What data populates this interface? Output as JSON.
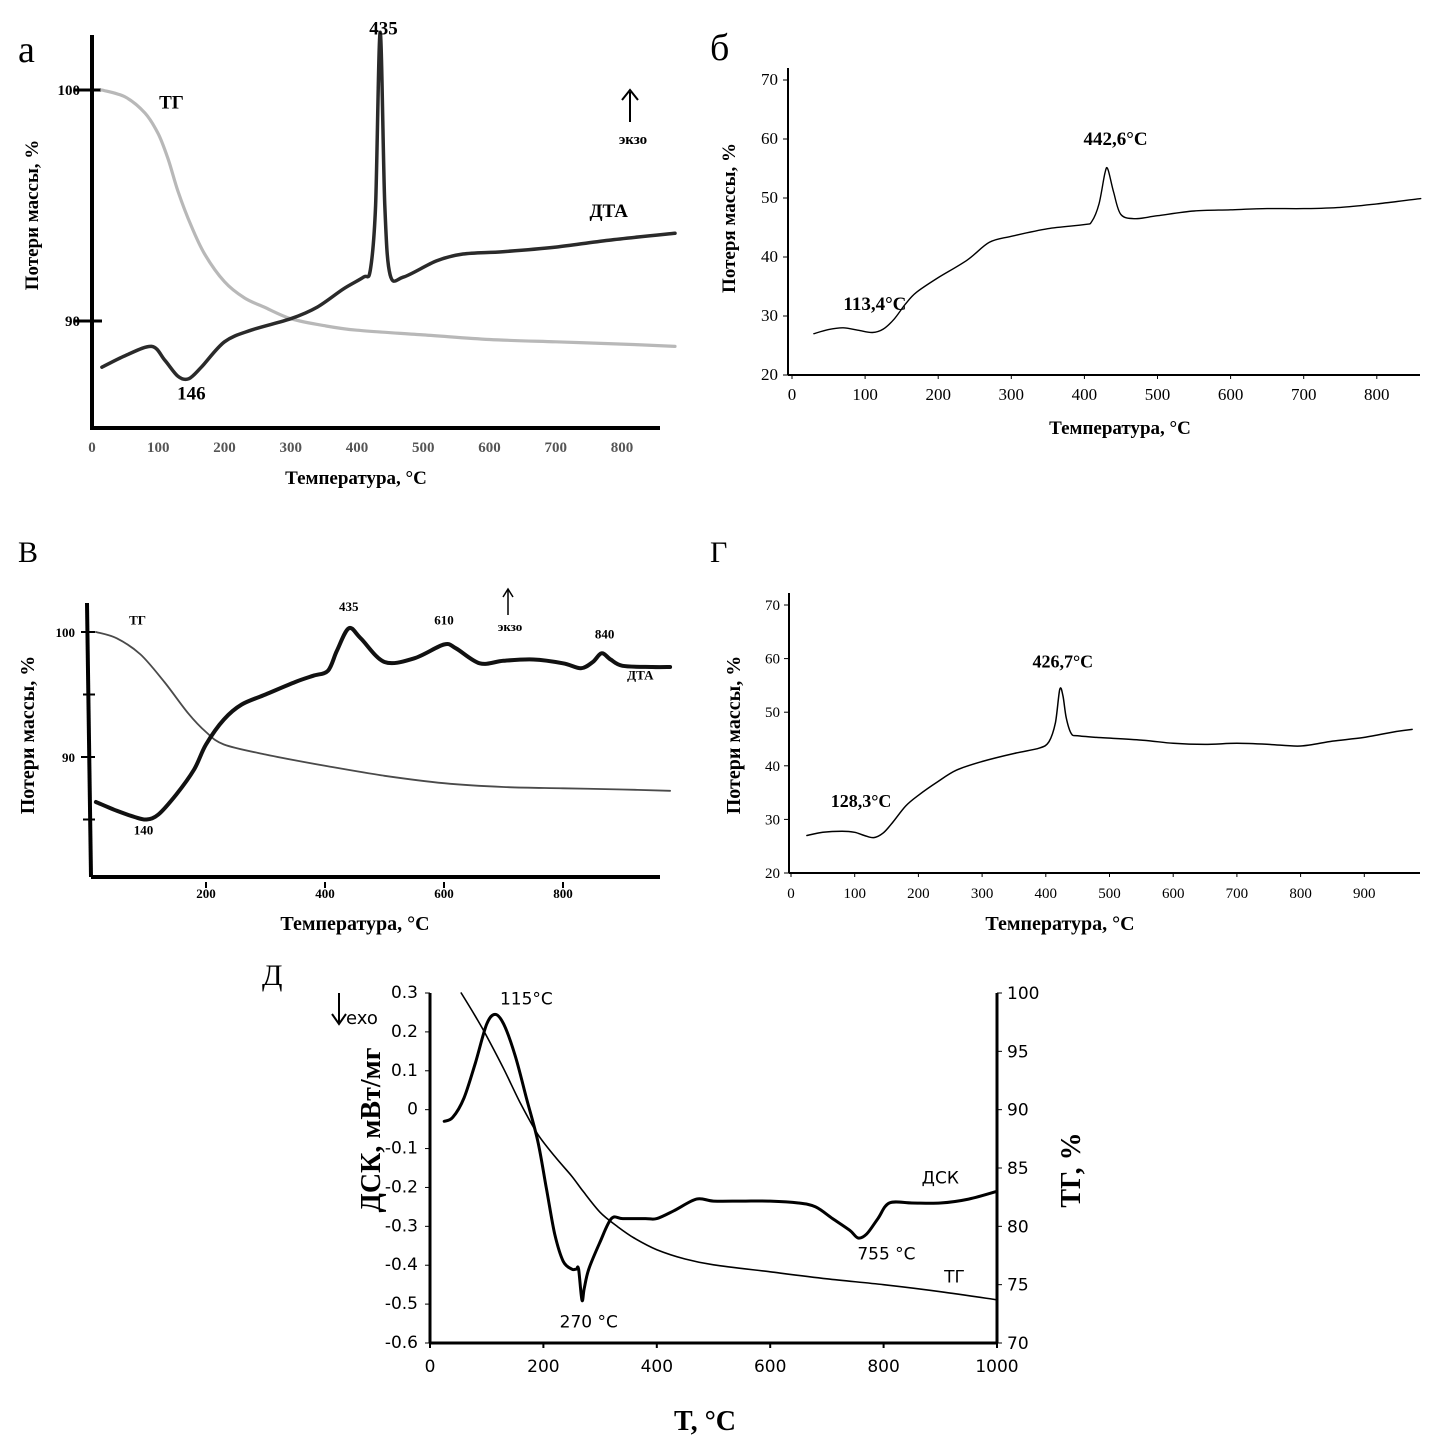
{
  "chart_data": [
    {
      "id": "a",
      "panel_label": "а",
      "type": "line",
      "title": "",
      "xlabel": "Температура, °С",
      "ylabel": "Потери массы, %",
      "xlim": [
        0,
        880
      ],
      "x_ticks": [
        "0",
        "100",
        "200",
        "300",
        "400",
        "500",
        "600",
        "700",
        "800"
      ],
      "x_tick_values": [
        0,
        100,
        200,
        300,
        400,
        500,
        600,
        700,
        800
      ],
      "y_ticks": [
        "100",
        "90"
      ],
      "y_tick_values": [
        100,
        90
      ],
      "ylim": [
        85.3,
        103
      ],
      "grid": false,
      "exo_label": "экзо",
      "series": [
        {
          "name": "ТГ",
          "color": "#b8b8b8",
          "axis": "left",
          "x": [
            15,
            50,
            80,
            100,
            115,
            130,
            150,
            170,
            200,
            230,
            260,
            300,
            350,
            400,
            500,
            600,
            700,
            800,
            880
          ],
          "y": [
            100,
            99.7,
            99,
            98.1,
            97,
            95.6,
            94.1,
            92.9,
            91.7,
            91,
            90.6,
            90.1,
            89.8,
            89.6,
            89.4,
            89.2,
            89.1,
            89.0,
            88.9
          ]
        },
        {
          "name": "ДТА",
          "color": "#2a2a2a",
          "axis": "left",
          "x": [
            15,
            50,
            90,
            110,
            130,
            146,
            165,
            200,
            240,
            300,
            340,
            380,
            410,
            420,
            428,
            435,
            442,
            450,
            470,
            520,
            560,
            620,
            700,
            780,
            880
          ],
          "y": [
            88.0,
            88.5,
            88.9,
            88.3,
            87.6,
            87.5,
            88.0,
            89.1,
            89.6,
            90.1,
            90.6,
            91.4,
            91.9,
            92.2,
            95.0,
            102.5,
            95.0,
            92.0,
            91.9,
            92.6,
            92.9,
            93.0,
            93.2,
            93.5,
            93.8
          ]
        }
      ],
      "annotations": [
        {
          "text": "ТГ",
          "x": 120,
          "y": 99.2
        },
        {
          "text": "ДТА",
          "x": 780,
          "y": 94.5
        },
        {
          "text": "435",
          "x": 440,
          "y": 102.4
        },
        {
          "text": "146",
          "x": 150,
          "y": 86.6
        }
      ]
    },
    {
      "id": "b",
      "panel_label": "б",
      "type": "line",
      "title": "",
      "xlabel": "Температура, °С",
      "ylabel": "Потеря массы, %",
      "xlim": [
        0,
        860
      ],
      "ylim": [
        20,
        72
      ],
      "x_ticks": [
        "0",
        "100",
        "200",
        "300",
        "400",
        "500",
        "600",
        "700",
        "800"
      ],
      "x_tick_values": [
        0,
        100,
        200,
        300,
        400,
        500,
        600,
        700,
        800
      ],
      "y_ticks": [
        "20",
        "30",
        "40",
        "50",
        "60",
        "70"
      ],
      "y_tick_values": [
        20,
        30,
        40,
        50,
        60,
        70
      ],
      "grid": false,
      "series": [
        {
          "name": "curve",
          "color": "#000000",
          "x": [
            30,
            50,
            70,
            90,
            110,
            125,
            140,
            155,
            170,
            200,
            240,
            270,
            300,
            350,
            400,
            410,
            420,
            428,
            432,
            440,
            450,
            470,
            500,
            550,
            600,
            650,
            700,
            750,
            800,
            860
          ],
          "y": [
            27.0,
            27.7,
            28.0,
            27.6,
            27.2,
            27.8,
            29.5,
            32.0,
            34.0,
            36.5,
            39.5,
            42.5,
            43.5,
            44.8,
            45.5,
            46.0,
            49.0,
            54.2,
            54.9,
            51.0,
            47.2,
            46.5,
            47.0,
            47.8,
            48.0,
            48.2,
            48.2,
            48.4,
            49.0,
            49.9
          ]
        }
      ],
      "annotations": [
        {
          "text": "113,4°С",
          "x": 113.4,
          "y": 31
        },
        {
          "text": "442,6°С",
          "x": 442.6,
          "y": 59
        }
      ]
    },
    {
      "id": "v",
      "panel_label": "В",
      "type": "line",
      "title": "",
      "xlabel": "Температура, °С",
      "ylabel": "Потери массы, %",
      "xlim": [
        0,
        980
      ],
      "ylim": [
        80,
        102.5
      ],
      "x_ticks": [
        "200",
        "400",
        "600",
        "800"
      ],
      "x_tick_values": [
        200,
        400,
        600,
        800
      ],
      "y_ticks": [
        "100",
        "90"
      ],
      "y_tick_values": [
        100,
        90
      ],
      "grid": false,
      "exo_label": "экзо",
      "series": [
        {
          "name": "ТГ",
          "color": "#4a4a4a",
          "axis": "left",
          "x": [
            15,
            50,
            90,
            130,
            170,
            200,
            230,
            300,
            400,
            500,
            600,
            700,
            800,
            900,
            980
          ],
          "y": [
            100,
            99.5,
            98.2,
            96.0,
            93.5,
            92.0,
            91.0,
            90.2,
            89.3,
            88.5,
            87.9,
            87.6,
            87.5,
            87.4,
            87.3
          ]
        },
        {
          "name": "ДТА",
          "color": "#111111",
          "axis": "left",
          "x": [
            15,
            50,
            80,
            100,
            120,
            150,
            180,
            200,
            230,
            260,
            300,
            350,
            380,
            405,
            420,
            440,
            460,
            500,
            550,
            600,
            620,
            660,
            700,
            750,
            800,
            830,
            850,
            865,
            880,
            900,
            950,
            980
          ],
          "y": [
            86.4,
            85.7,
            85.2,
            85.0,
            85.4,
            87.0,
            89.0,
            91.0,
            93.0,
            94.2,
            95.0,
            96.0,
            96.5,
            96.9,
            98.5,
            100.3,
            99.5,
            97.6,
            97.9,
            99.0,
            98.7,
            97.5,
            97.7,
            97.8,
            97.5,
            97.1,
            97.6,
            98.3,
            97.8,
            97.3,
            97.2,
            97.2
          ]
        }
      ],
      "annotations": [
        {
          "text": "ТГ",
          "x": 85,
          "y": 100.6
        },
        {
          "text": "ДТА",
          "x": 930,
          "y": 96.2
        },
        {
          "text": "435",
          "x": 440,
          "y": 101.7
        },
        {
          "text": "610",
          "x": 600,
          "y": 100.6
        },
        {
          "text": "840",
          "x": 870,
          "y": 99.5
        },
        {
          "text": "140",
          "x": 95,
          "y": 83.8
        }
      ]
    },
    {
      "id": "g",
      "panel_label": "Г",
      "type": "line",
      "title": "",
      "xlabel": "Температура, °С",
      "ylabel": "Потери массы, %",
      "xlim": [
        0,
        975
      ],
      "ylim": [
        20,
        72
      ],
      "x_ticks": [
        "0",
        "100",
        "200",
        "300",
        "400",
        "500",
        "600",
        "700",
        "800",
        "900"
      ],
      "x_tick_values": [
        0,
        100,
        200,
        300,
        400,
        500,
        600,
        700,
        800,
        900
      ],
      "y_ticks": [
        "20",
        "30",
        "40",
        "50",
        "60",
        "70"
      ],
      "y_tick_values": [
        20,
        30,
        40,
        50,
        60,
        70
      ],
      "grid": false,
      "series": [
        {
          "name": "curve",
          "color": "#000000",
          "x": [
            25,
            50,
            80,
            100,
            115,
            130,
            145,
            160,
            180,
            200,
            230,
            260,
            300,
            350,
            390,
            405,
            415,
            422,
            427,
            432,
            440,
            450,
            480,
            550,
            600,
            650,
            700,
            750,
            800,
            850,
            900,
            950,
            975
          ],
          "y": [
            27.0,
            27.6,
            27.8,
            27.6,
            27.0,
            26.6,
            27.5,
            29.5,
            32.5,
            34.5,
            37.0,
            39.2,
            40.8,
            42.3,
            43.3,
            44.5,
            48.0,
            54.3,
            53.0,
            49.0,
            46.0,
            45.6,
            45.3,
            44.8,
            44.2,
            44.0,
            44.2,
            44.0,
            43.7,
            44.6,
            45.3,
            46.4,
            46.8
          ]
        }
      ],
      "annotations": [
        {
          "text": "128,3°С",
          "x": 110,
          "y": 32.3
        },
        {
          "text": "426,7°С",
          "x": 426.7,
          "y": 58.3
        }
      ]
    },
    {
      "id": "d",
      "panel_label": "Д",
      "type": "line",
      "title": "",
      "xlabel": "T, °C",
      "ylabel": "ДСК, мВт/мг",
      "y2label": "ТГ, %",
      "xlim": [
        0,
        1000
      ],
      "ylim": [
        -0.6,
        0.3
      ],
      "y2lim": [
        70,
        100
      ],
      "x_ticks": [
        "0",
        "200",
        "400",
        "600",
        "800",
        "1000"
      ],
      "x_tick_values": [
        0,
        200,
        400,
        600,
        800,
        1000
      ],
      "y_ticks": [
        "0.3",
        "0.2",
        "0.1",
        "0",
        "-0.1",
        "-0.2",
        "-0.3",
        "-0.4",
        "-0.5",
        "-0.6"
      ],
      "y_tick_values": [
        0.3,
        0.2,
        0.1,
        0,
        -0.1,
        -0.2,
        -0.3,
        -0.4,
        -0.5,
        -0.6
      ],
      "y2_ticks": [
        "100",
        "95",
        "90",
        "85",
        "80",
        "75",
        "70"
      ],
      "y2_tick_values": [
        100,
        95,
        90,
        85,
        80,
        75,
        70
      ],
      "grid": false,
      "exo_label": "exo",
      "series": [
        {
          "name": "ДСК",
          "color": "#000000",
          "axis": "left",
          "x": [
            25,
            40,
            60,
            80,
            100,
            115,
            130,
            150,
            170,
            190,
            205,
            220,
            235,
            250,
            258,
            262,
            268,
            272,
            280,
            300,
            320,
            340,
            380,
            400,
            430,
            470,
            500,
            550,
            600,
            650,
            680,
            710,
            740,
            755,
            770,
            790,
            810,
            850,
            900,
            950,
            1000
          ],
          "y": [
            -0.03,
            -0.02,
            0.03,
            0.12,
            0.22,
            0.245,
            0.22,
            0.14,
            0.03,
            -0.08,
            -0.2,
            -0.32,
            -0.39,
            -0.41,
            -0.41,
            -0.41,
            -0.49,
            -0.46,
            -0.41,
            -0.34,
            -0.28,
            -0.28,
            -0.28,
            -0.28,
            -0.26,
            -0.23,
            -0.235,
            -0.235,
            -0.235,
            -0.24,
            -0.25,
            -0.28,
            -0.31,
            -0.33,
            -0.32,
            -0.28,
            -0.24,
            -0.24,
            -0.24,
            -0.23,
            -0.21
          ]
        },
        {
          "name": "ТГ",
          "color": "#000000",
          "axis": "right",
          "x": [
            55,
            80,
            100,
            130,
            160,
            190,
            220,
            250,
            270,
            300,
            330,
            360,
            400,
            450,
            500,
            600,
            700,
            800,
            900,
            1000
          ],
          "y": [
            100,
            98.0,
            96.3,
            93.5,
            90.5,
            87.9,
            86.0,
            84.3,
            83.0,
            81.2,
            80.0,
            79.0,
            78.0,
            77.2,
            76.7,
            76.1,
            75.5,
            75.0,
            74.4,
            73.7
          ]
        }
      ],
      "annotations": [
        {
          "text": "115°C",
          "x": 170,
          "y": 0.27
        },
        {
          "text": "270 °C",
          "x": 280,
          "y": -0.56
        },
        {
          "text": "755 °C",
          "x": 805,
          "y": -0.385
        },
        {
          "text": "ДСК",
          "x": 900,
          "y": -0.19
        },
        {
          "text": "ТГ",
          "x": 925,
          "y": -0.445
        }
      ]
    }
  ]
}
